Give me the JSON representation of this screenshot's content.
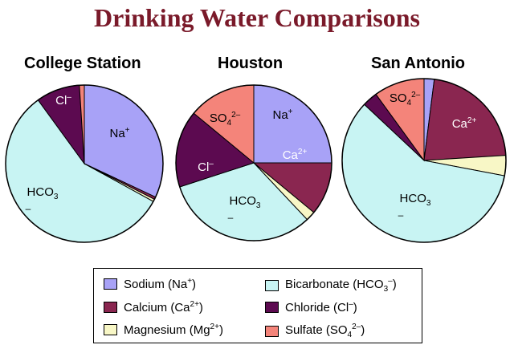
{
  "title": "Drinking Water Comparisons",
  "colors": {
    "sodium": "#a8a2f7",
    "calcium": "#8a2650",
    "magnesium": "#f8f7c6",
    "bicarbonate": "#c8f4f3",
    "chloride": "#5c0a50",
    "sulfate": "#f4847a"
  },
  "chart_data": [
    {
      "type": "pie",
      "title": "College Station",
      "slices": [
        {
          "key": "sodium",
          "value": 32
        },
        {
          "key": "calcium",
          "value": 0.5
        },
        {
          "key": "magnesium",
          "value": 0.5
        },
        {
          "key": "bicarbonate",
          "value": 57
        },
        {
          "key": "chloride",
          "value": 9
        },
        {
          "key": "sulfate",
          "value": 1
        }
      ],
      "labels": {
        "sodium": "Na+",
        "bicarbonate": "HCO3 –",
        "chloride": "Cl–"
      }
    },
    {
      "type": "pie",
      "title": "Houston",
      "slices": [
        {
          "key": "sodium",
          "value": 25
        },
        {
          "key": "calcium",
          "value": 11
        },
        {
          "key": "magnesium",
          "value": 2
        },
        {
          "key": "bicarbonate",
          "value": 32
        },
        {
          "key": "chloride",
          "value": 16
        },
        {
          "key": "sulfate",
          "value": 14
        }
      ],
      "labels": {
        "sodium": "Na+",
        "calcium": "Ca2+",
        "bicarbonate": "HCO3 –",
        "chloride": "Cl–",
        "sulfate": "SO42–"
      }
    },
    {
      "type": "pie",
      "title": "San Antonio",
      "slices": [
        {
          "key": "sodium",
          "value": 2
        },
        {
          "key": "calcium",
          "value": 22
        },
        {
          "key": "magnesium",
          "value": 4
        },
        {
          "key": "bicarbonate",
          "value": 59
        },
        {
          "key": "chloride",
          "value": 3
        },
        {
          "key": "sulfate",
          "value": 10
        }
      ],
      "labels": {
        "calcium": "Ca2+",
        "bicarbonate": "HCO3 –",
        "sulfate": "SO42–"
      }
    }
  ],
  "legend": [
    {
      "key": "sodium",
      "name": "Sodium (Na+)"
    },
    {
      "key": "calcium",
      "name": "Calcium (Ca2+)"
    },
    {
      "key": "magnesium",
      "name": "Magnesium (Mg2+)"
    },
    {
      "key": "bicarbonate",
      "name": "Bicarbonate (HCO3–)"
    },
    {
      "key": "chloride",
      "name": "Chloride (Cl–)"
    },
    {
      "key": "sulfate",
      "name": "Sulfate (SO42–)"
    }
  ]
}
